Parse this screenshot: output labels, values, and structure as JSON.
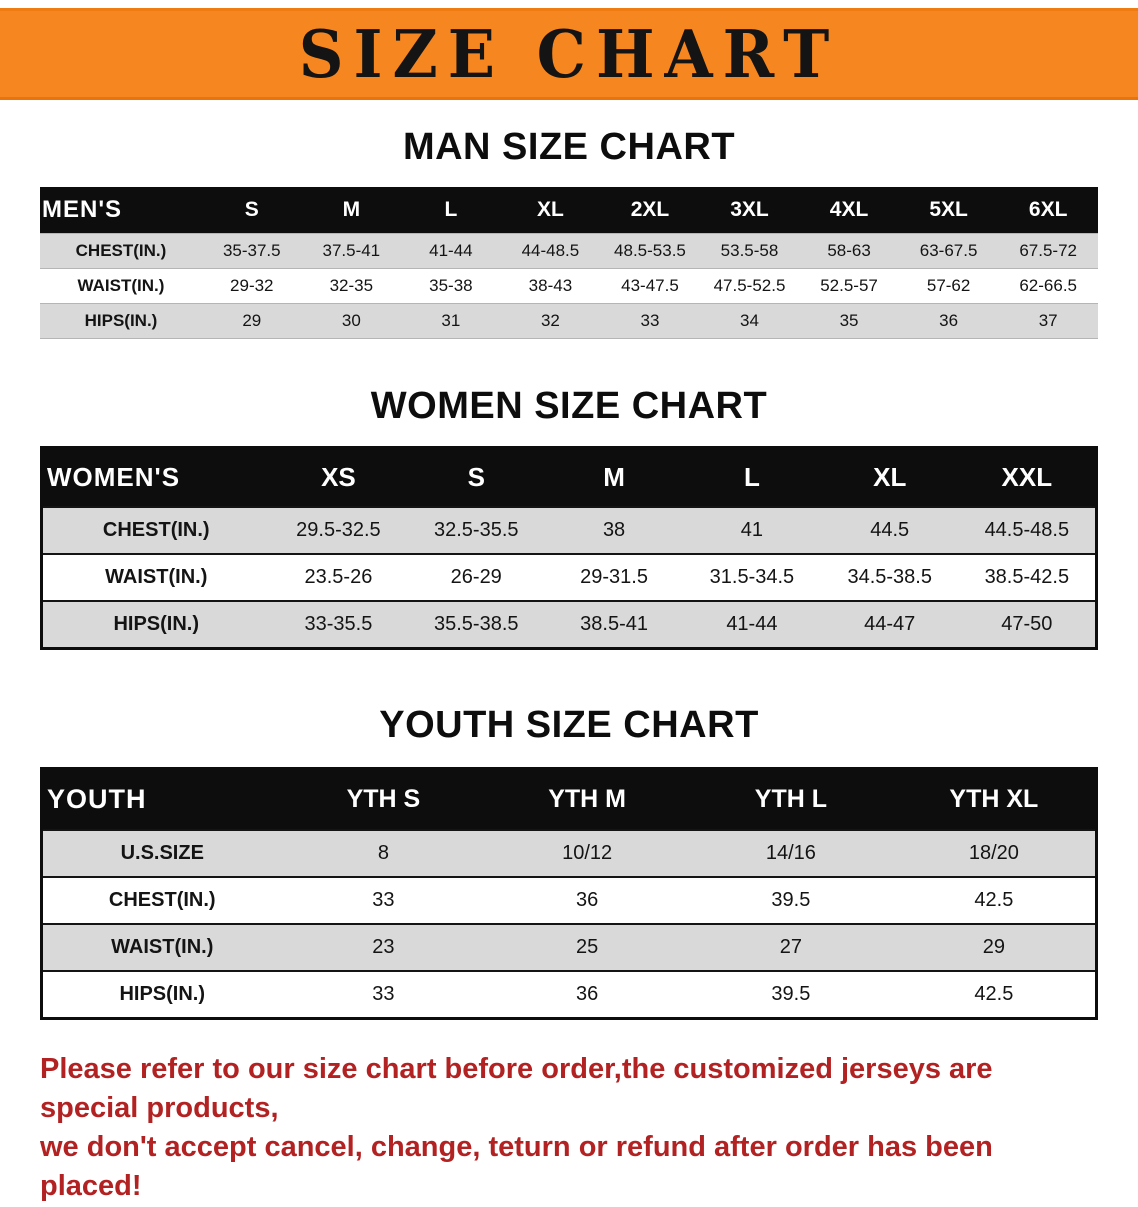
{
  "banner": {
    "title": "SIZE CHART",
    "bg_color": "#f6861f",
    "text_color": "#141414"
  },
  "colors": {
    "table_header_bg": "#0d0d0d",
    "table_header_text": "#ffffff",
    "row_stripe_gray": "#d9d9d9",
    "disclaimer_red": "#b32222"
  },
  "men": {
    "heading": "MAN SIZE CHART",
    "header": [
      "MEN'S",
      "S",
      "M",
      "L",
      "XL",
      "2XL",
      "3XL",
      "4XL",
      "5XL",
      "6XL"
    ],
    "rows": [
      [
        "CHEST(IN.)",
        "35-37.5",
        "37.5-41",
        "41-44",
        "44-48.5",
        "48.5-53.5",
        "53.5-58",
        "58-63",
        "63-67.5",
        "67.5-72"
      ],
      [
        "WAIST(IN.)",
        "29-32",
        "32-35",
        "35-38",
        "38-43",
        "43-47.5",
        "47.5-52.5",
        "52.5-57",
        "57-62",
        "62-66.5"
      ],
      [
        "HIPS(IN.)",
        "29",
        "30",
        "31",
        "32",
        "33",
        "34",
        "35",
        "36",
        "37"
      ]
    ]
  },
  "women": {
    "heading": "WOMEN SIZE CHART",
    "header": [
      "WOMEN'S",
      "XS",
      "S",
      "M",
      "L",
      "XL",
      "XXL"
    ],
    "rows": [
      [
        "CHEST(IN.)",
        "29.5-32.5",
        "32.5-35.5",
        "38",
        "41",
        "44.5",
        "44.5-48.5"
      ],
      [
        "WAIST(IN.)",
        "23.5-26",
        "26-29",
        "29-31.5",
        "31.5-34.5",
        "34.5-38.5",
        "38.5-42.5"
      ],
      [
        "HIPS(IN.)",
        "33-35.5",
        "35.5-38.5",
        "38.5-41",
        "41-44",
        "44-47",
        "47-50"
      ]
    ]
  },
  "youth": {
    "heading": "YOUTH SIZE CHART",
    "header": [
      "YOUTH",
      "YTH S",
      "YTH M",
      "YTH L",
      "YTH XL"
    ],
    "rows": [
      [
        "U.S.SIZE",
        "8",
        "10/12",
        "14/16",
        "18/20"
      ],
      [
        "CHEST(IN.)",
        "33",
        "36",
        "39.5",
        "42.5"
      ],
      [
        "WAIST(IN.)",
        "23",
        "25",
        "27",
        "29"
      ],
      [
        "HIPS(IN.)",
        "33",
        "36",
        "39.5",
        "42.5"
      ]
    ]
  },
  "footer": {
    "line1": "Please refer to our size chart before order,the customized jerseys are special products,",
    "line2": "we don't accept cancel, change, teturn or refund after order has been placed!"
  }
}
